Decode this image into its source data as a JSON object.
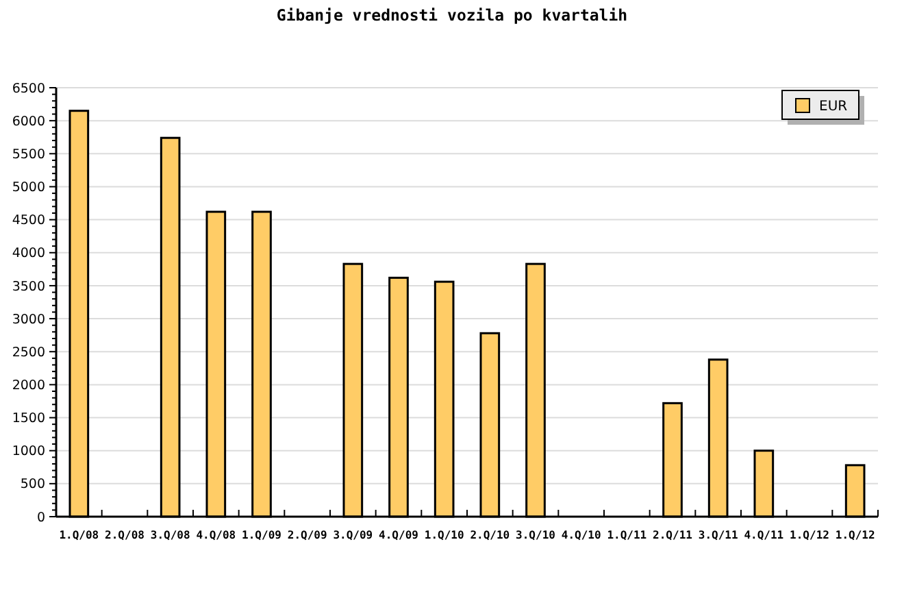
{
  "chart_data": {
    "type": "bar",
    "title": "Gibanje vrednosti vozila po kvartalih",
    "categories": [
      "1.Q/08",
      "2.Q/08",
      "3.Q/08",
      "4.Q/08",
      "1.Q/09",
      "2.Q/09",
      "3.Q/09",
      "4.Q/09",
      "1.Q/10",
      "2.Q/10",
      "3.Q/10",
      "4.Q/10",
      "1.Q/11",
      "2.Q/11",
      "3.Q/11",
      "4.Q/11",
      "1.Q/12",
      "1.Q/12"
    ],
    "series": [
      {
        "name": "EUR",
        "color": "#ffcc66",
        "values": [
          6150,
          null,
          5740,
          4620,
          4620,
          null,
          3830,
          3620,
          3560,
          2780,
          3830,
          null,
          null,
          1720,
          2380,
          1000,
          null,
          780
        ]
      }
    ],
    "ylim": [
      0,
      6500
    ],
    "yticks": [
      0,
      {
        "value": 100,
        "label": null
      },
      {
        "value": 200,
        "label": null
      },
      {
        "value": 300,
        "label": null
      },
      {
        "value": 400,
        "label": null
      },
      500,
      {
        "value": 600,
        "label": null
      },
      {
        "value": 700,
        "label": null
      },
      {
        "value": 800,
        "label": null
      },
      {
        "value": 900,
        "label": null
      },
      1000,
      {
        "value": 1100,
        "label": null
      },
      {
        "value": 1200,
        "label": null
      },
      {
        "value": 1300,
        "label": null
      },
      {
        "value": 1400,
        "label": null
      },
      1500,
      {
        "value": 1600,
        "label": null
      },
      {
        "value": 1700,
        "label": null
      },
      {
        "value": 1800,
        "label": null
      },
      {
        "value": 1900,
        "label": null
      },
      2000,
      {
        "value": 2100,
        "label": null
      },
      {
        "value": 2200,
        "label": null
      },
      {
        "value": 2300,
        "label": null
      },
      {
        "value": 2400,
        "label": null
      },
      2500,
      {
        "value": 2600,
        "label": null
      },
      {
        "value": 2700,
        "label": null
      },
      {
        "value": 2800,
        "label": null
      },
      {
        "value": 2900,
        "label": null
      },
      3000,
      {
        "value": 3100,
        "label": null
      },
      {
        "value": 3200,
        "label": null
      },
      {
        "value": 3300,
        "label": null
      },
      {
        "value": 3400,
        "label": null
      },
      3500,
      {
        "value": 3600,
        "label": null
      },
      {
        "value": 3700,
        "label": null
      },
      {
        "value": 3800,
        "label": null
      },
      {
        "value": 3900,
        "label": null
      },
      4000,
      {
        "value": 4100,
        "label": null
      },
      {
        "value": 4200,
        "label": null
      },
      {
        "value": 4300,
        "label": null
      },
      {
        "value": 4400,
        "label": null
      },
      4500,
      {
        "value": 4600,
        "label": null
      },
      {
        "value": 4700,
        "label": null
      },
      {
        "value": 4800,
        "label": null
      },
      {
        "value": 4900,
        "label": null
      },
      5000,
      {
        "value": 5100,
        "label": null
      },
      {
        "value": 5200,
        "label": null
      },
      {
        "value": 5300,
        "label": null
      },
      {
        "value": 5400,
        "label": null
      },
      5500,
      {
        "value": 5600,
        "label": null
      },
      {
        "value": 5700,
        "label": null
      },
      {
        "value": 5800,
        "label": null
      },
      {
        "value": 5900,
        "label": null
      },
      6000,
      {
        "value": 6100,
        "label": null
      },
      {
        "value": 6200,
        "label": null
      },
      {
        "value": 6300,
        "label": null
      },
      {
        "value": 6400,
        "label": null
      },
      6500
    ],
    "grid": "y",
    "legend": "top right"
  }
}
